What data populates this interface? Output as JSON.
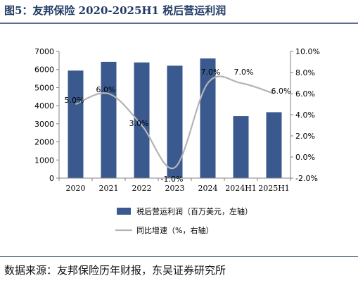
{
  "figure": {
    "title": "图5：友邦保险 2020-2025H1 税后营运利润",
    "source": "数据来源：友邦保险历年财报，东吴证券研究所"
  },
  "chart_data": {
    "type": "bar",
    "categories": [
      "2020",
      "2021",
      "2022",
      "2023",
      "2024",
      "2024H1",
      "2025H1"
    ],
    "series": [
      {
        "name": "税后营运利润（百万美元，左轴）",
        "type": "bar",
        "axis": "left",
        "values": [
          5940,
          6420,
          6390,
          6210,
          6610,
          3420,
          3640
        ],
        "color": "#3a5a8f"
      },
      {
        "name": "同比增速（%，右轴）",
        "type": "line",
        "axis": "right",
        "values": [
          5.0,
          6.0,
          3.0,
          -1.0,
          7.0,
          7.0,
          6.0
        ],
        "labels": [
          "5.0%",
          "6.0%",
          "3.0%",
          "-1.0%",
          "7.0%",
          "7.0%",
          "6.0%"
        ],
        "color": "#b4b4b4"
      }
    ],
    "left_axis": {
      "ylim": [
        0,
        7000
      ],
      "ticks": [
        "0",
        "1000",
        "2000",
        "3000",
        "4000",
        "5000",
        "6000",
        "7000"
      ]
    },
    "right_axis": {
      "ylim": [
        -2,
        10
      ],
      "ticks": [
        "-2.0%",
        "0.0%",
        "2.0%",
        "4.0%",
        "6.0%",
        "8.0%",
        "10.0%"
      ]
    },
    "legend_position": "bottom",
    "grid": false
  }
}
